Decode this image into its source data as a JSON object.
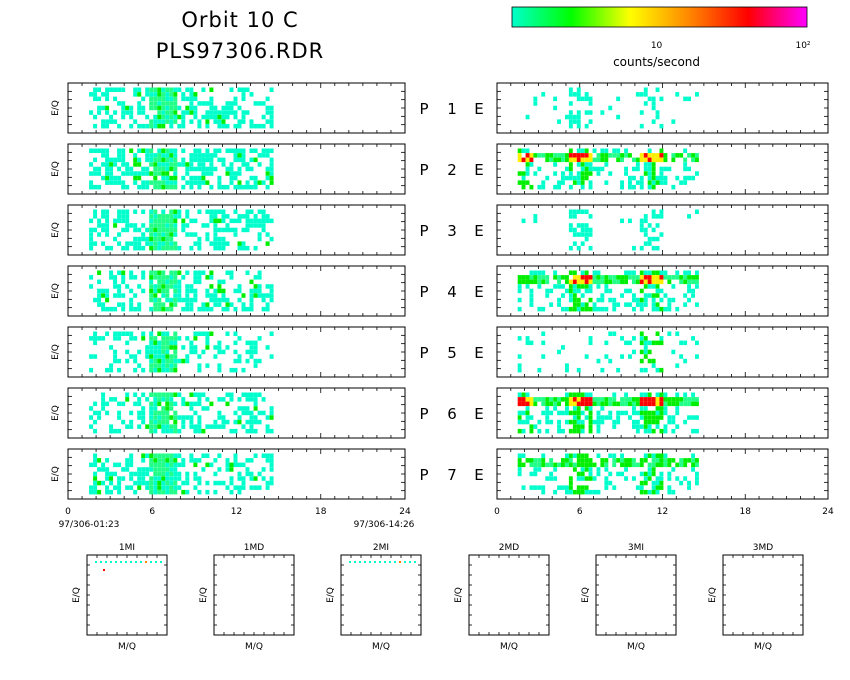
{
  "header": {
    "title_line1": "Orbit 10 C",
    "title_line2": "PLS97306.RDR"
  },
  "colorbar": {
    "label": "counts/second",
    "tick_labels": [
      "10",
      "10²"
    ],
    "colors": [
      "#00ffcc",
      "#00ff00",
      "#ffff00",
      "#ff8800",
      "#ff0000",
      "#ff00ff"
    ]
  },
  "chart_data": {
    "type": "heatmap",
    "panels_per_side": 7,
    "row_labels": [
      {
        "P": "P",
        "n": "1",
        "E": "E"
      },
      {
        "P": "P",
        "n": "2",
        "E": "E"
      },
      {
        "P": "P",
        "n": "3",
        "E": "E"
      },
      {
        "P": "P",
        "n": "4",
        "E": "E"
      },
      {
        "P": "P",
        "n": "5",
        "E": "E"
      },
      {
        "P": "P",
        "n": "6",
        "E": "E"
      },
      {
        "P": "P",
        "n": "7",
        "E": "E"
      }
    ],
    "ylabel": "E/Q",
    "xlim": [
      0,
      24
    ],
    "x_ticks": [
      "0",
      "6",
      "12",
      "18",
      "24"
    ],
    "time_start": "97/306-01:23",
    "time_end": "97/306-14:26",
    "left_panels": [
      {
        "x_range": [
          1.5,
          14.5
        ],
        "band": [
          5.5,
          7.5
        ],
        "density": 0.45
      },
      {
        "x_range": [
          1.5,
          14.5
        ],
        "band": [
          5.5,
          7.5
        ],
        "density": 0.55
      },
      {
        "x_range": [
          1.5,
          14.5
        ],
        "band": [
          5.5,
          7.5
        ],
        "density": 0.5
      },
      {
        "x_range": [
          1.5,
          14.5
        ],
        "band": [
          5.5,
          7.5
        ],
        "density": 0.45
      },
      {
        "x_range": [
          1.5,
          14.5
        ],
        "band": [
          5.5,
          7.5
        ],
        "density": 0.3
      },
      {
        "x_range": [
          1.5,
          14.5
        ],
        "band": [
          5.5,
          7.5
        ],
        "density": 0.4
      },
      {
        "x_range": [
          1.5,
          14.5
        ],
        "band": [
          5.5,
          7.5
        ],
        "density": 0.45
      }
    ],
    "right_panels": [
      {
        "x_range": [
          1.5,
          14.5
        ],
        "density": 0.06,
        "hot_x": [
          6,
          11
        ],
        "hot_level": 1
      },
      {
        "x_range": [
          1.5,
          14.5
        ],
        "density": 0.5,
        "hot_x": [
          1.5,
          6,
          11
        ],
        "hot_level": 4
      },
      {
        "x_range": [
          1.5,
          14.5
        ],
        "density": 0.04,
        "hot_x": [
          6,
          11
        ],
        "hot_level": 1
      },
      {
        "x_range": [
          1.5,
          14.5
        ],
        "density": 0.55,
        "hot_x": [
          6,
          11
        ],
        "hot_level": 4
      },
      {
        "x_range": [
          1.5,
          14.5
        ],
        "density": 0.15,
        "hot_x": [
          11
        ],
        "hot_level": 2
      },
      {
        "x_range": [
          1.5,
          14.5
        ],
        "density": 0.6,
        "hot_x": [
          1.5,
          6,
          11
        ],
        "hot_level": 4
      },
      {
        "x_range": [
          1.5,
          14.5
        ],
        "density": 0.55,
        "hot_x": [
          6,
          11
        ],
        "hot_level": 2
      }
    ],
    "small_panels": [
      {
        "title": "1MI",
        "xlabel": "M/Q",
        "ylabel": "E/Q",
        "has_points": true
      },
      {
        "title": "1MD",
        "xlabel": "M/Q",
        "ylabel": "E/Q",
        "has_points": false
      },
      {
        "title": "2MI",
        "xlabel": "M/Q",
        "ylabel": "E/Q",
        "has_points": true
      },
      {
        "title": "2MD",
        "xlabel": "M/Q",
        "ylabel": "E/Q",
        "has_points": false
      },
      {
        "title": "3MI",
        "xlabel": "M/Q",
        "ylabel": "E/Q",
        "has_points": false
      },
      {
        "title": "3MD",
        "xlabel": "M/Q",
        "ylabel": "E/Q",
        "has_points": false
      }
    ]
  }
}
